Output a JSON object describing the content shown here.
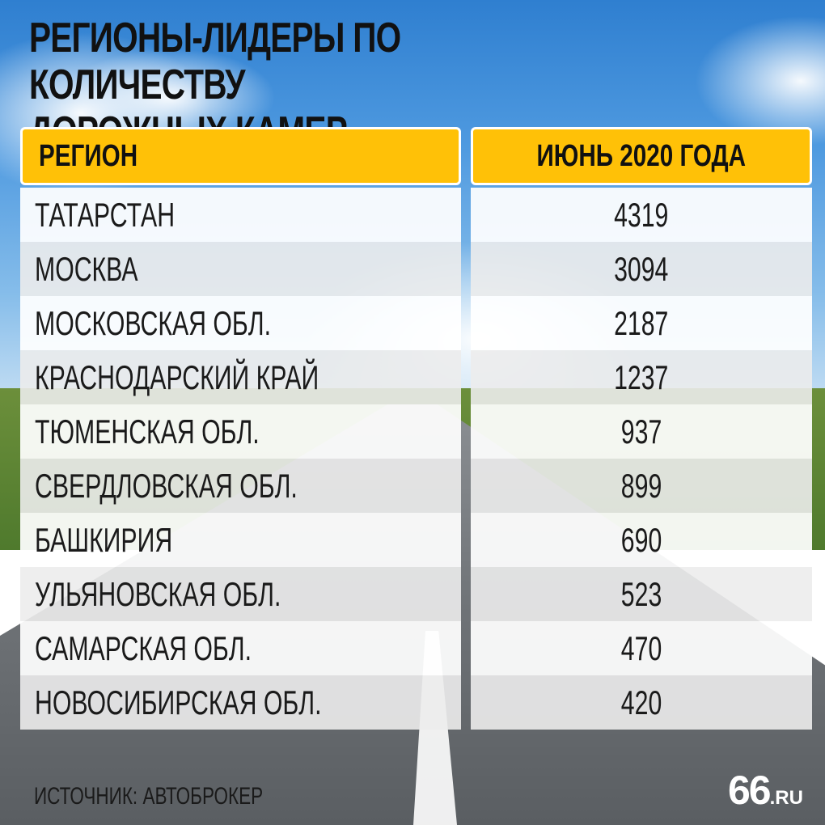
{
  "title_line1": "Регионы-лидеры по количеству",
  "title_line2": "дорожных камер",
  "source": "Источник: Автоброкер",
  "logo": {
    "number": "66",
    "suffix": ".RU"
  },
  "chart_data": {
    "type": "table",
    "columns": [
      "Регион",
      "Июнь 2020 года"
    ],
    "rows": [
      [
        "Татарстан",
        "4319"
      ],
      [
        "Москва",
        "3094"
      ],
      [
        "Московская обл.",
        "2187"
      ],
      [
        "Краснодарский край",
        "1237"
      ],
      [
        "Тюменская обл.",
        "937"
      ],
      [
        "Свердловская обл.",
        "899"
      ],
      [
        "Башкирия",
        "690"
      ],
      [
        "Ульяновская обл.",
        "523"
      ],
      [
        "Самарская обл.",
        "470"
      ],
      [
        "Новосибирская обл.",
        "420"
      ]
    ]
  }
}
